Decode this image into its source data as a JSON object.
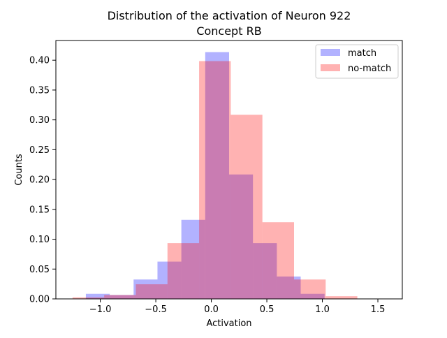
{
  "chart_data": {
    "type": "bar",
    "subtype": "overlapping-histogram",
    "title_line1": "Distribution of the activation of Neuron 922",
    "title_line2": "Concept RB",
    "xlabel": "Activation",
    "ylabel": "Counts",
    "xlim": [
      -1.4,
      1.72
    ],
    "ylim": [
      0,
      0.433
    ],
    "xticks": [
      -1.0,
      -0.5,
      0.0,
      0.5,
      1.0,
      1.5
    ],
    "xtick_labels": [
      "−1.0",
      "−0.5",
      "0.0",
      "0.5",
      "1.0",
      "1.5"
    ],
    "yticks": [
      0.0,
      0.05,
      0.1,
      0.15,
      0.2,
      0.25,
      0.3,
      0.35,
      0.4
    ],
    "ytick_labels": [
      "0.00",
      "0.05",
      "0.10",
      "0.15",
      "0.20",
      "0.25",
      "0.30",
      "0.35",
      "0.40"
    ],
    "grid": false,
    "legend_position": "top-right",
    "series": [
      {
        "name": "match",
        "color": "#0000ff",
        "alpha": 0.3,
        "bin_edges": [
          -1.13,
          -0.915,
          -0.7,
          -0.485,
          -0.27,
          -0.055,
          0.16,
          0.375,
          0.59,
          0.805,
          1.02
        ],
        "values": [
          0.0085,
          0.0065,
          0.0325,
          0.0625,
          0.1325,
          0.4135,
          0.2085,
          0.0935,
          0.0375,
          0.0085
        ]
      },
      {
        "name": "no-match",
        "color": "#ff0000",
        "alpha": 0.3,
        "bin_edges": [
          -1.25,
          -0.965,
          -0.68,
          -0.395,
          -0.11,
          0.175,
          0.46,
          0.745,
          1.03,
          1.315
        ],
        "values": [
          0.0025,
          0.0065,
          0.0245,
          0.0935,
          0.3985,
          0.3085,
          0.1285,
          0.0325,
          0.0045
        ]
      }
    ]
  }
}
